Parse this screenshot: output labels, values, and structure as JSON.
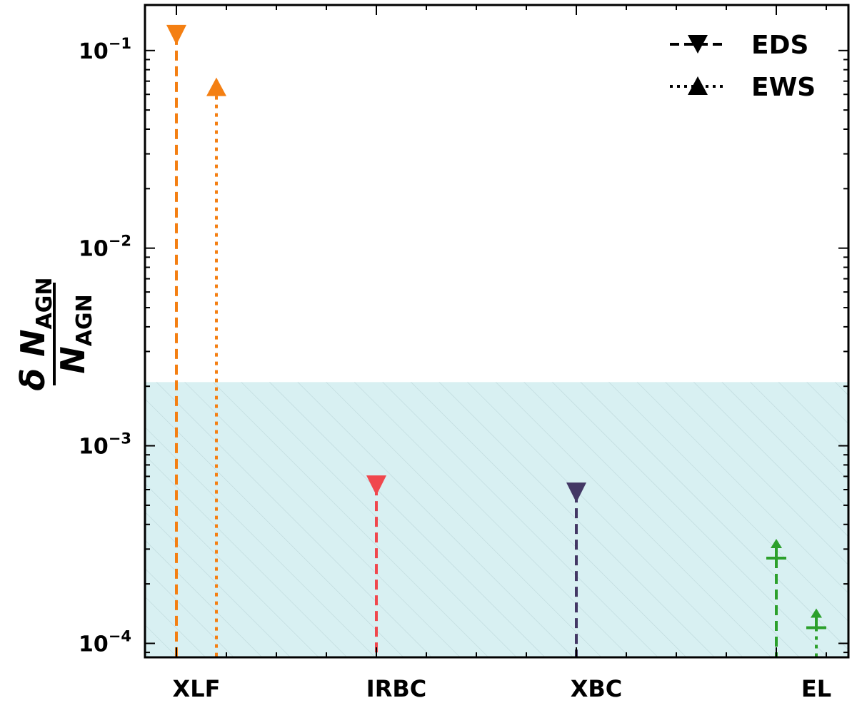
{
  "chart_data": {
    "type": "scatter",
    "yscale": "log",
    "ylim": [
      8.5e-05,
      0.17
    ],
    "ylabel": {
      "numerator": "δ N",
      "numerator_sub": "AGN",
      "denominator": "N",
      "denominator_sub": "AGN"
    },
    "categories": [
      "XLF",
      "IRBC",
      "XBC",
      "EL"
    ],
    "yticks": [
      {
        "value": 0.1,
        "mantissa": "10",
        "exp": "−1"
      },
      {
        "value": 0.01,
        "mantissa": "10",
        "exp": "−2"
      },
      {
        "value": 0.001,
        "mantissa": "10",
        "exp": "−3"
      },
      {
        "value": 0.0001,
        "mantissa": "10",
        "exp": "−4"
      }
    ],
    "shaded_region": {
      "ymax": 0.0021,
      "color": "#d8f0f2"
    },
    "legend": {
      "position": "top-right",
      "entries": [
        {
          "label": "EDS",
          "linestyle": "dashed",
          "marker": "triangle-down"
        },
        {
          "label": "EWS",
          "linestyle": "dotted",
          "marker": "triangle-up"
        }
      ]
    },
    "points": [
      {
        "category": "XLF",
        "pos": 0.0,
        "survey": "EDS",
        "value": 0.12,
        "kind": "upper",
        "color": "#f47f12"
      },
      {
        "category": "XLF",
        "pos": 0.2,
        "survey": "EWS",
        "value": 0.065,
        "kind": "upper",
        "color": "#f47f12"
      },
      {
        "category": "IRBC",
        "pos": 1.0,
        "survey": "EDS",
        "value": 0.00063,
        "kind": "upper",
        "color": "#f0474d"
      },
      {
        "category": "XBC",
        "pos": 2.0,
        "survey": "EDS",
        "value": 0.00058,
        "kind": "upper",
        "color": "#433865"
      },
      {
        "category": "EL",
        "pos": 3.0,
        "survey": "EDS",
        "value": 0.00027,
        "kind": "lower",
        "color": "#2ca02c"
      },
      {
        "category": "EL",
        "pos": 3.2,
        "survey": "EWS",
        "value": 0.00012,
        "kind": "lower",
        "color": "#2ca02c"
      }
    ]
  }
}
